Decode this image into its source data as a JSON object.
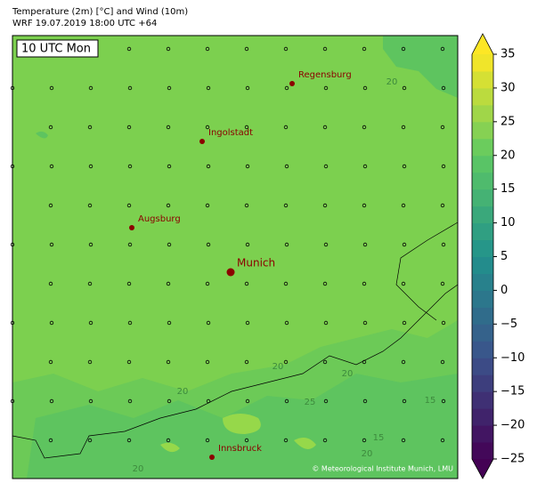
{
  "header": {
    "title": "Temperature (2m) [°C] and Wind (10m)",
    "subtitle": "WRF 19.07.2019 18:00 UTC +64"
  },
  "time_label": "10 UTC Mon",
  "cities": [
    "Regensburg",
    "Ingolstadt",
    "Augsburg",
    "Munich",
    "Innsbruck"
  ],
  "contour_labels": [
    20,
    20,
    20,
    20,
    15,
    25,
    20,
    15,
    20
  ],
  "copyright": "© Meteorological Institute Munich, LMU",
  "colorbar": {
    "colormap": "viridis",
    "min": -25,
    "max": 35,
    "step": 2.5,
    "ticks": [
      {
        "value": -25,
        "label": "−25"
      },
      {
        "value": -20,
        "label": "−20"
      },
      {
        "value": -15,
        "label": "−15"
      },
      {
        "value": -10,
        "label": "−10"
      },
      {
        "value": -5,
        "label": "−5"
      },
      0,
      5,
      10,
      15,
      20,
      25,
      30,
      35
    ]
  }
}
